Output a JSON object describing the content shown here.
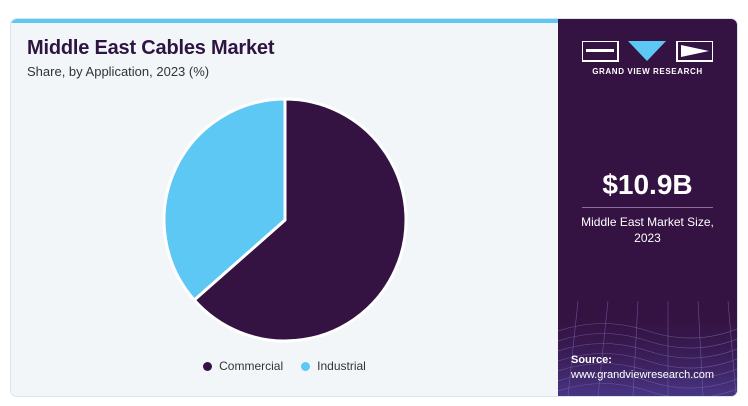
{
  "title": "Middle East Cables Market",
  "subtitle": "Share, by Application, 2023 (%)",
  "chart_data": {
    "type": "pie",
    "title": "Middle East Cables Market",
    "subtitle": "Share, by Application, 2023 (%)",
    "categories": [
      "Commercial",
      "Industrial"
    ],
    "values": [
      63.5,
      36.5
    ],
    "colors": [
      "#341241",
      "#5ec8f5"
    ],
    "legend_position": "bottom",
    "start_angle": "12 o'clock, clockwise"
  },
  "legend": [
    {
      "label": "Commercial",
      "color": "#341241"
    },
    {
      "label": "Industrial",
      "color": "#5ec8f5"
    }
  ],
  "sidebar": {
    "brand": "GRAND VIEW RESEARCH",
    "market_size_value": "$10.9B",
    "market_size_label": "Middle East Market Size, 2023",
    "source_label": "Source:",
    "source_url": "www.grandviewresearch.com"
  },
  "colors": {
    "accent": "#5ec8f5",
    "brand_dark": "#341241",
    "panel_bg": "#f3f6f9"
  }
}
